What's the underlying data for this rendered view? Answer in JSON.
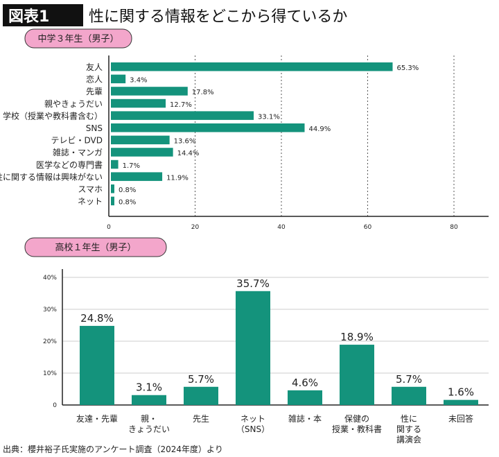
{
  "header": {
    "badge": "図表1",
    "title": "性に関する情報をどこから得ているか"
  },
  "source": "出典：櫻井裕子氏実施のアンケート調査（2024年度）より",
  "colors": {
    "bar": "#14937c",
    "pill": "#f3a6cb",
    "badge_bg": "#111111"
  },
  "chart_data": [
    {
      "type": "bar",
      "orientation": "horizontal",
      "title": "中学３年生（男子）",
      "categories": [
        "友人",
        "恋人",
        "先輩",
        "親やきょうだい",
        "学校（授業や教科書含む）",
        "SNS",
        "テレビ・DVD",
        "雑誌・マンガ",
        "医学などの専門書",
        "性に関する情報は興味がない",
        "スマホ",
        "ネット"
      ],
      "values": [
        65.3,
        3.4,
        17.8,
        12.7,
        33.1,
        44.9,
        13.6,
        14.4,
        1.7,
        11.9,
        0.8,
        0.8
      ],
      "labels": [
        "65.3%",
        "3.4%",
        "17.8%",
        "12.7%",
        "33.1%",
        "44.9%",
        "13.6%",
        "14.4%",
        "1.7%",
        "11.9%",
        "0.8%",
        "0.8%"
      ],
      "xlim": [
        0,
        80
      ],
      "xticks": [
        "0",
        "20",
        "40",
        "60",
        "80"
      ],
      "grid": "dotted vertical"
    },
    {
      "type": "bar",
      "orientation": "vertical",
      "title": "高校１年生（男子）",
      "categories": [
        [
          "友達・先輩"
        ],
        [
          "親・",
          "きょうだい"
        ],
        [
          "先生"
        ],
        [
          "ネット",
          "（SNS）"
        ],
        [
          "雑誌・本"
        ],
        [
          "保健の",
          "授業・教科書"
        ],
        [
          "性に",
          "関する",
          "講演会"
        ],
        [
          "未回答"
        ]
      ],
      "values": [
        24.8,
        3.1,
        5.7,
        35.7,
        4.6,
        18.9,
        5.7,
        1.6
      ],
      "labels": [
        "24.8%",
        "3.1%",
        "5.7%",
        "35.7%",
        "4.6%",
        "18.9%",
        "5.7%",
        "1.6%"
      ],
      "ylim": [
        0,
        40
      ],
      "yticks": [
        "0",
        "10%",
        "20%",
        "30%",
        "40%"
      ],
      "grid": "horizontal"
    }
  ]
}
